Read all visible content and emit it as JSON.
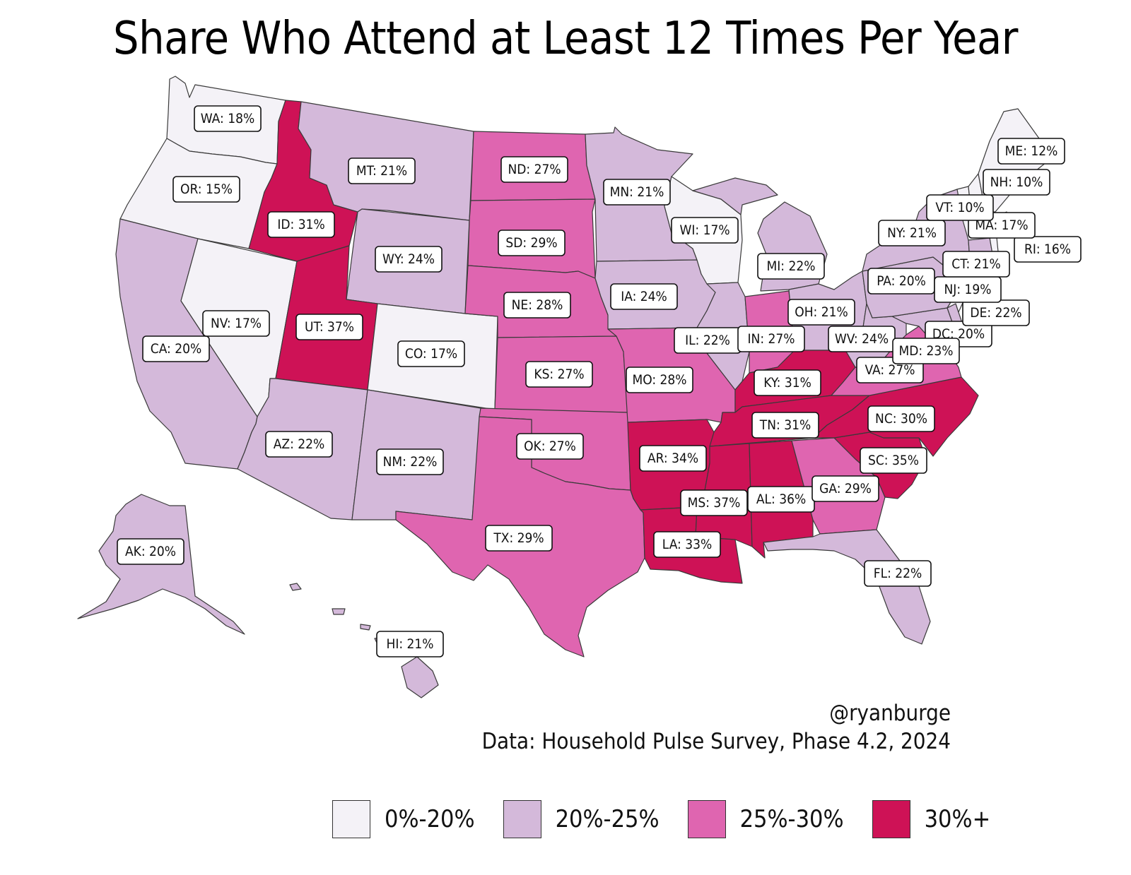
{
  "title": "Share Who Attend at Least 12 Times Per Year",
  "credit": {
    "author": "@ryanburge",
    "source": "Data: Household Pulse Survey, Phase 4.2, 2024"
  },
  "colors": {
    "bin0": "#f4f2f7",
    "bin1": "#d4b9da",
    "bin2": "#df65b0",
    "bin3": "#ce1256"
  },
  "legend": [
    {
      "label": "0%-20%",
      "bin": "bin0"
    },
    {
      "label": "20%-25%",
      "bin": "bin1"
    },
    {
      "label": "25%-30%",
      "bin": "bin2"
    },
    {
      "label": "30%+",
      "bin": "bin3"
    }
  ],
  "states": [
    {
      "code": "WA",
      "label": "WA: 18%",
      "value": 18
    },
    {
      "code": "OR",
      "label": "OR: 15%",
      "value": 15
    },
    {
      "code": "CA",
      "label": "CA: 20%",
      "value": 20
    },
    {
      "code": "NV",
      "label": "NV: 17%",
      "value": 17
    },
    {
      "code": "ID",
      "label": "ID: 31%",
      "value": 31
    },
    {
      "code": "MT",
      "label": "MT: 21%",
      "value": 21
    },
    {
      "code": "WY",
      "label": "WY: 24%",
      "value": 24
    },
    {
      "code": "UT",
      "label": "UT: 37%",
      "value": 37
    },
    {
      "code": "AZ",
      "label": "AZ: 22%",
      "value": 22
    },
    {
      "code": "CO",
      "label": "CO: 17%",
      "value": 17
    },
    {
      "code": "NM",
      "label": "NM: 22%",
      "value": 22
    },
    {
      "code": "ND",
      "label": "ND: 27%",
      "value": 27
    },
    {
      "code": "SD",
      "label": "SD: 29%",
      "value": 29
    },
    {
      "code": "NE",
      "label": "NE: 28%",
      "value": 28
    },
    {
      "code": "KS",
      "label": "KS: 27%",
      "value": 27
    },
    {
      "code": "OK",
      "label": "OK: 27%",
      "value": 27
    },
    {
      "code": "TX",
      "label": "TX: 29%",
      "value": 29
    },
    {
      "code": "MN",
      "label": "MN: 21%",
      "value": 21
    },
    {
      "code": "IA",
      "label": "IA: 24%",
      "value": 24
    },
    {
      "code": "MO",
      "label": "MO: 28%",
      "value": 28
    },
    {
      "code": "AR",
      "label": "AR: 34%",
      "value": 34
    },
    {
      "code": "LA",
      "label": "LA: 33%",
      "value": 33
    },
    {
      "code": "WI",
      "label": "WI: 17%",
      "value": 17
    },
    {
      "code": "IL",
      "label": "IL: 22%",
      "value": 22
    },
    {
      "code": "MI",
      "label": "MI: 22%",
      "value": 22
    },
    {
      "code": "IN",
      "label": "IN: 27%",
      "value": 27
    },
    {
      "code": "OH",
      "label": "OH: 21%",
      "value": 21
    },
    {
      "code": "KY",
      "label": "KY: 31%",
      "value": 31
    },
    {
      "code": "TN",
      "label": "TN: 31%",
      "value": 31
    },
    {
      "code": "MS",
      "label": "MS: 37%",
      "value": 37
    },
    {
      "code": "AL",
      "label": "AL: 36%",
      "value": 36
    },
    {
      "code": "GA",
      "label": "GA: 29%",
      "value": 29
    },
    {
      "code": "FL",
      "label": "FL: 22%",
      "value": 22
    },
    {
      "code": "SC",
      "label": "SC: 35%",
      "value": 35
    },
    {
      "code": "NC",
      "label": "NC: 30%",
      "value": 30
    },
    {
      "code": "VA",
      "label": "VA: 27%",
      "value": 27
    },
    {
      "code": "WV",
      "label": "WV: 24%",
      "value": 24
    },
    {
      "code": "MD",
      "label": "MD: 23%",
      "value": 23
    },
    {
      "code": "DC",
      "label": "DC: 20%",
      "value": 20
    },
    {
      "code": "DE",
      "label": "DE: 22%",
      "value": 22
    },
    {
      "code": "PA",
      "label": "PA: 20%",
      "value": 20
    },
    {
      "code": "NJ",
      "label": "NJ: 19%",
      "value": 19
    },
    {
      "code": "NY",
      "label": "NY: 21%",
      "value": 21
    },
    {
      "code": "CT",
      "label": "CT: 21%",
      "value": 21
    },
    {
      "code": "RI",
      "label": "RI: 16%",
      "value": 16
    },
    {
      "code": "MA",
      "label": "MA: 17%",
      "value": 17
    },
    {
      "code": "VT",
      "label": "VT: 10%",
      "value": 10
    },
    {
      "code": "NH",
      "label": "NH: 10%",
      "value": 10
    },
    {
      "code": "ME",
      "label": "ME: 12%",
      "value": 12
    },
    {
      "code": "AK",
      "label": "AK: 20%",
      "value": 20
    },
    {
      "code": "HI",
      "label": "HI: 21%",
      "value": 21
    }
  ]
}
